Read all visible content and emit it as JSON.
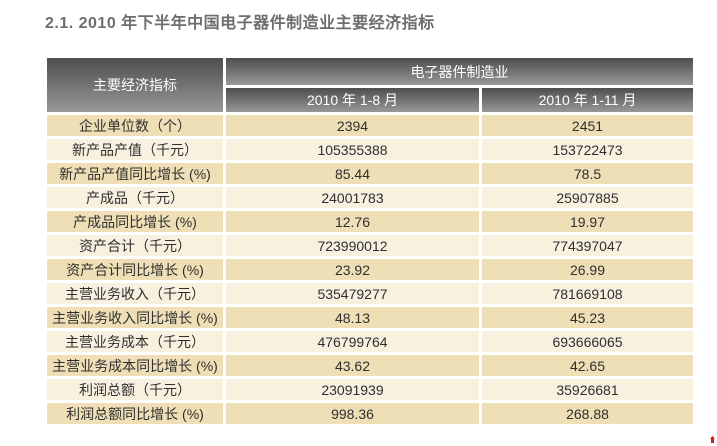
{
  "title": "2.1. 2010 年下半年中国电子器件制造业主要经济指标",
  "colors": {
    "header_gradient_top": "#4e4e4e",
    "header_gradient_bottom": "#989898",
    "row_odd_bg": "#eedfb6",
    "row_even_bg": "#f8f1e0",
    "title_text": "#6d6d6d",
    "body_text": "#2f2f2f",
    "corner_mark": "#cf1d1d"
  },
  "table": {
    "corner_header": "主要经济指标",
    "group_header": "电子器件制造业",
    "column_headers": [
      "2010 年 1-8 月",
      "2010 年 1-11 月"
    ],
    "rows": [
      {
        "label": "企业单位数（个）",
        "v1": "2394",
        "v2": "2451"
      },
      {
        "label": "新产品产值（千元）",
        "v1": "105355388",
        "v2": "153722473"
      },
      {
        "label": "新产品产值同比增长 (%)",
        "v1": "85.44",
        "v2": "78.5"
      },
      {
        "label": "产成品（千元）",
        "v1": "24001783",
        "v2": "25907885"
      },
      {
        "label": "产成品同比增长 (%)",
        "v1": "12.76",
        "v2": "19.97"
      },
      {
        "label": "资产合计（千元）",
        "v1": "723990012",
        "v2": "774397047"
      },
      {
        "label": "资产合计同比增长 (%)",
        "v1": "23.92",
        "v2": "26.99"
      },
      {
        "label": "主营业务收入（千元）",
        "v1": "535479277",
        "v2": "781669108"
      },
      {
        "label": "主营业务收入同比增长 (%)",
        "v1": "48.13",
        "v2": "45.23"
      },
      {
        "label": "主营业务成本（千元）",
        "v1": "476799764",
        "v2": "693666065"
      },
      {
        "label": "主营业务成本同比增长 (%)",
        "v1": "43.62",
        "v2": "42.65"
      },
      {
        "label": "利润总额（千元）",
        "v1": "23091939",
        "v2": "35926681"
      },
      {
        "label": "利润总额同比增长 (%)",
        "v1": "998.36",
        "v2": "268.88"
      }
    ]
  }
}
